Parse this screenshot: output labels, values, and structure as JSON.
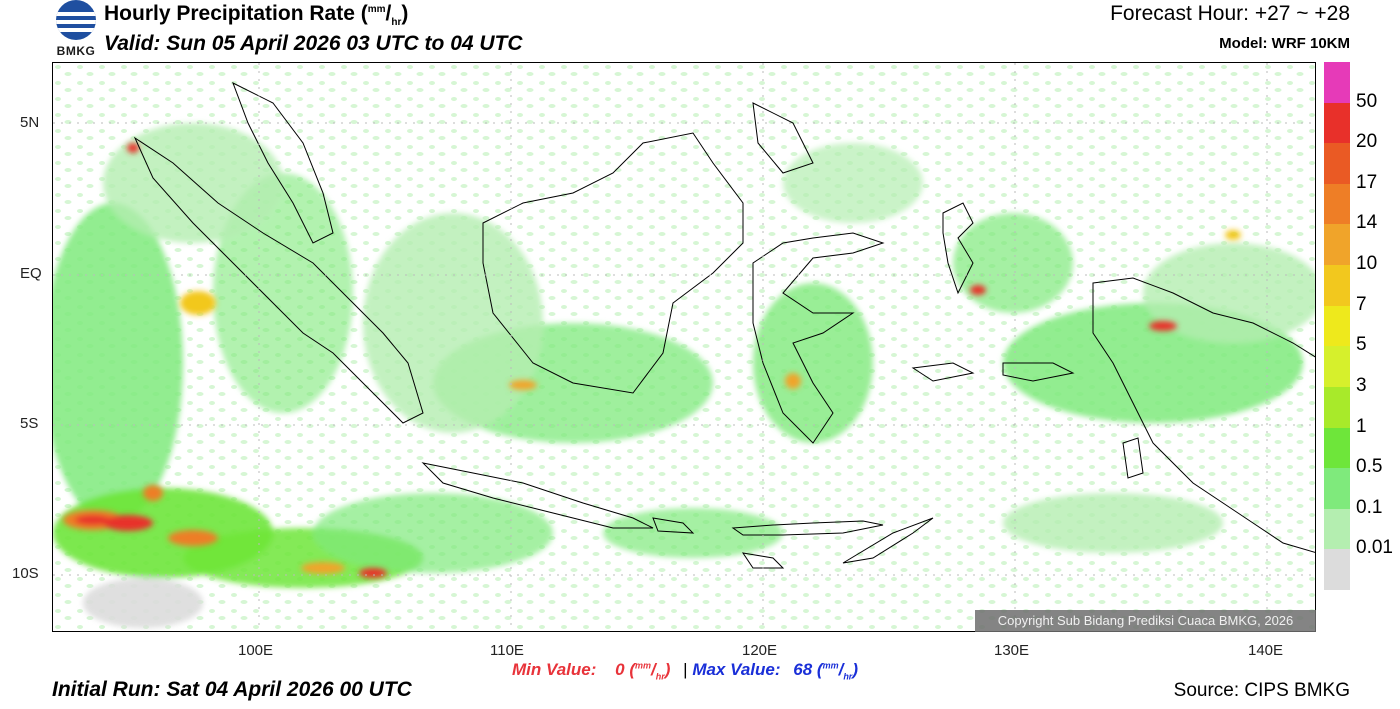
{
  "header": {
    "logo_text": "BMKG",
    "title_main": "Hourly Precipitation Rate (",
    "title_unit_num": "mm",
    "title_unit_den": "hr",
    "title_close": ")",
    "valid": "Valid: Sun 05 April 2026 03 UTC to 04 UTC",
    "forecast_hour": "Forecast Hour: +27 ~ +28",
    "model": "Model: WRF 10KM"
  },
  "map": {
    "lat_labels": [
      "5N",
      "EQ",
      "5S",
      "10S"
    ],
    "lon_labels": [
      "100E",
      "110E",
      "120E",
      "130E",
      "140E"
    ],
    "copyright": "Copyright Sub Bidang Prediksi Cuaca BMKG, 2026"
  },
  "colorbar": {
    "levels": [
      "50",
      "20",
      "17",
      "14",
      "10",
      "7",
      "5",
      "3",
      "1",
      "0.5",
      "0.1",
      "0.01"
    ],
    "colors": [
      "#e63ab8",
      "#e8302a",
      "#ea5a24",
      "#ee7e26",
      "#f0a42a",
      "#f2c81e",
      "#eee91c",
      "#d6f02c",
      "#a8ea2a",
      "#6ee63a",
      "#7fea7c",
      "#b4eeb0",
      "#dcdcdc"
    ]
  },
  "footer": {
    "min_label": "Min Value:",
    "min_value": "0",
    "separator": "|",
    "max_label": "Max Value:",
    "max_value": "68",
    "unit_num": "mm",
    "unit_den": "hr",
    "initial_run": "Initial Run: Sat 04 April 2026 00 UTC",
    "source": "Source: CIPS BMKG"
  }
}
